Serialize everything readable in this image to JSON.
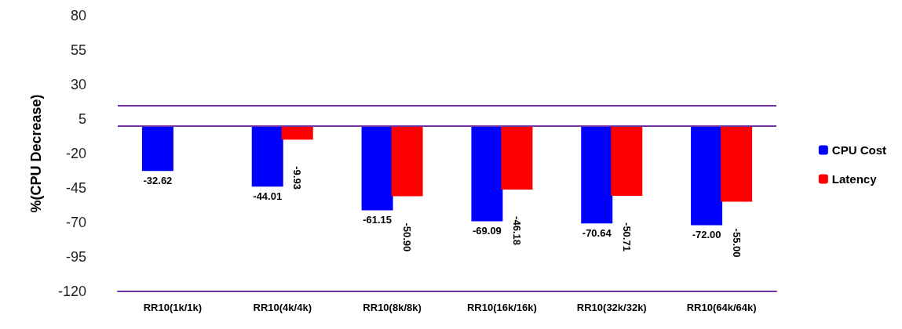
{
  "chart_data": {
    "type": "bar",
    "ylabel": "%(CPU Decrease)",
    "categories": [
      "RR10(1k/1k)",
      "RR10(4k/4k)",
      "RR10(8k/8k)",
      "RR10(16k/16k)",
      "RR10(32k/32k)",
      "RR10(64k/64k)"
    ],
    "series": [
      {
        "name": "CPU Cost",
        "color": "#0000ff",
        "values": [
          -32.62,
          -44.01,
          -61.15,
          -69.09,
          -70.64,
          -72.0
        ],
        "value_labels": [
          "-32.62",
          "-44.01",
          "-61.15",
          "-69.09",
          "-70.64",
          "-72.00"
        ]
      },
      {
        "name": "Latency",
        "color": "#ff0000",
        "values": [
          0,
          -9.93,
          -50.9,
          -46.18,
          -50.71,
          -55.0
        ],
        "value_labels": [
          null,
          "-9.93",
          "-50.90",
          "-46.18",
          "-50.71",
          "-55.00"
        ]
      }
    ],
    "ylim": [
      -120,
      80
    ],
    "yticks": [
      -120,
      -95,
      -70,
      -45,
      -20,
      5,
      30,
      55,
      80
    ],
    "grid": false,
    "legend": "right",
    "ref_lines": [
      {
        "axis": "y",
        "value": 15,
        "color": "#7030a0"
      },
      {
        "axis": "y",
        "value": 0,
        "color": "#7030a0"
      }
    ]
  }
}
